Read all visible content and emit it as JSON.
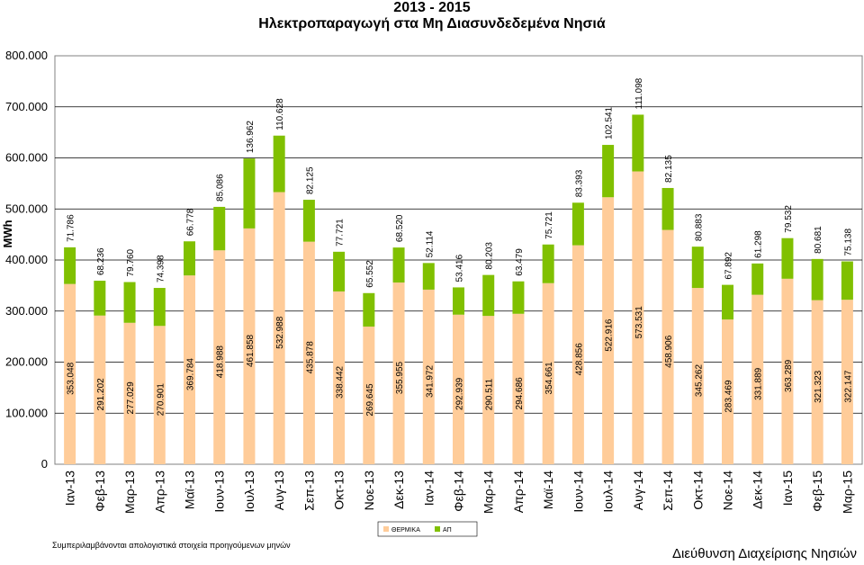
{
  "chart_data": {
    "type": "bar",
    "stacked": true,
    "title": "2013 - 2015",
    "subtitle": "Ηλεκτροπαραγωγή στα Μη Διασυνδεδεμένα Νησιά",
    "xlabel": "",
    "ylabel": "MWh",
    "ylim": [
      0,
      800000
    ],
    "yticks": [
      "0",
      "100.000",
      "200.000",
      "300.000",
      "400.000",
      "500.000",
      "600.000",
      "700.000",
      "800.000"
    ],
    "grid": true,
    "legend_position": "bottom",
    "categories": [
      "Ιαν-13",
      "Φεβ-13",
      "Μαρ-13",
      "Απρ-13",
      "Μαϊ-13",
      "Ιουν-13",
      "Ιουλ-13",
      "Αυγ-13",
      "Σεπ-13",
      "Οκτ-13",
      "Νοε-13",
      "Δεκ-13",
      "Ιαν-14",
      "Φεβ-14",
      "Μαρ-14",
      "Απρ-14",
      "Μαϊ-14",
      "Ιουν-14",
      "Ιουλ-14",
      "Αυγ-14",
      "Σεπ-14",
      "Οκτ-14",
      "Νοε-14",
      "Δεκ-14",
      "Ιαν-15",
      "Φεβ-15",
      "Μαρ-15"
    ],
    "series": [
      {
        "name": "ΘΕΡΜΙΚΑ",
        "color": "#FFCC99",
        "values": [
          353048,
          291202,
          277029,
          270901,
          369784,
          418988,
          461858,
          532988,
          435878,
          338442,
          269645,
          355955,
          341972,
          292939,
          290511,
          294686,
          354661,
          428856,
          522916,
          573531,
          458906,
          345262,
          283469,
          331889,
          363289,
          321323,
          322147
        ],
        "labels": [
          "353.048",
          "291.202",
          "277.029",
          "270.901",
          "369.784",
          "418.988",
          "461.858",
          "532.988",
          "435.878",
          "338.442",
          "269.645",
          "355.955",
          "341.972",
          "292.939",
          "290.511",
          "294.686",
          "354.661",
          "428.856",
          "522.916",
          "573.531",
          "458.906",
          "345.262",
          "283.469",
          "331.889",
          "363.289",
          "321.323",
          "322.147"
        ]
      },
      {
        "name": "ΑΠ",
        "color": "#80C000",
        "values": [
          71786,
          68236,
          79760,
          74398,
          66778,
          85086,
          136962,
          110628,
          82125,
          77721,
          65552,
          68520,
          52114,
          53416,
          80203,
          63479,
          75721,
          83393,
          102541,
          111098,
          82135,
          80883,
          67892,
          61298,
          79532,
          80681,
          75138
        ],
        "labels": [
          "71.786",
          "68.236",
          "79.760",
          "74.398",
          "66.778",
          "85.086",
          "136.962",
          "110.628",
          "82.125",
          "77.721",
          "65.552",
          "68.520",
          "52.114",
          "53.416",
          "80.203",
          "63.479",
          "75.721",
          "83.393",
          "102.541",
          "111.098",
          "82.135",
          "80.883",
          "67.892",
          "61.298",
          "79.532",
          "80.681",
          "75.138"
        ]
      }
    ]
  },
  "note": "Συμπεριλαμβάνονται απολογιστικά στοιχεία προηγούμενων μηνών",
  "footer": "Διεύθυνση Διαχείρισης Νησιών"
}
